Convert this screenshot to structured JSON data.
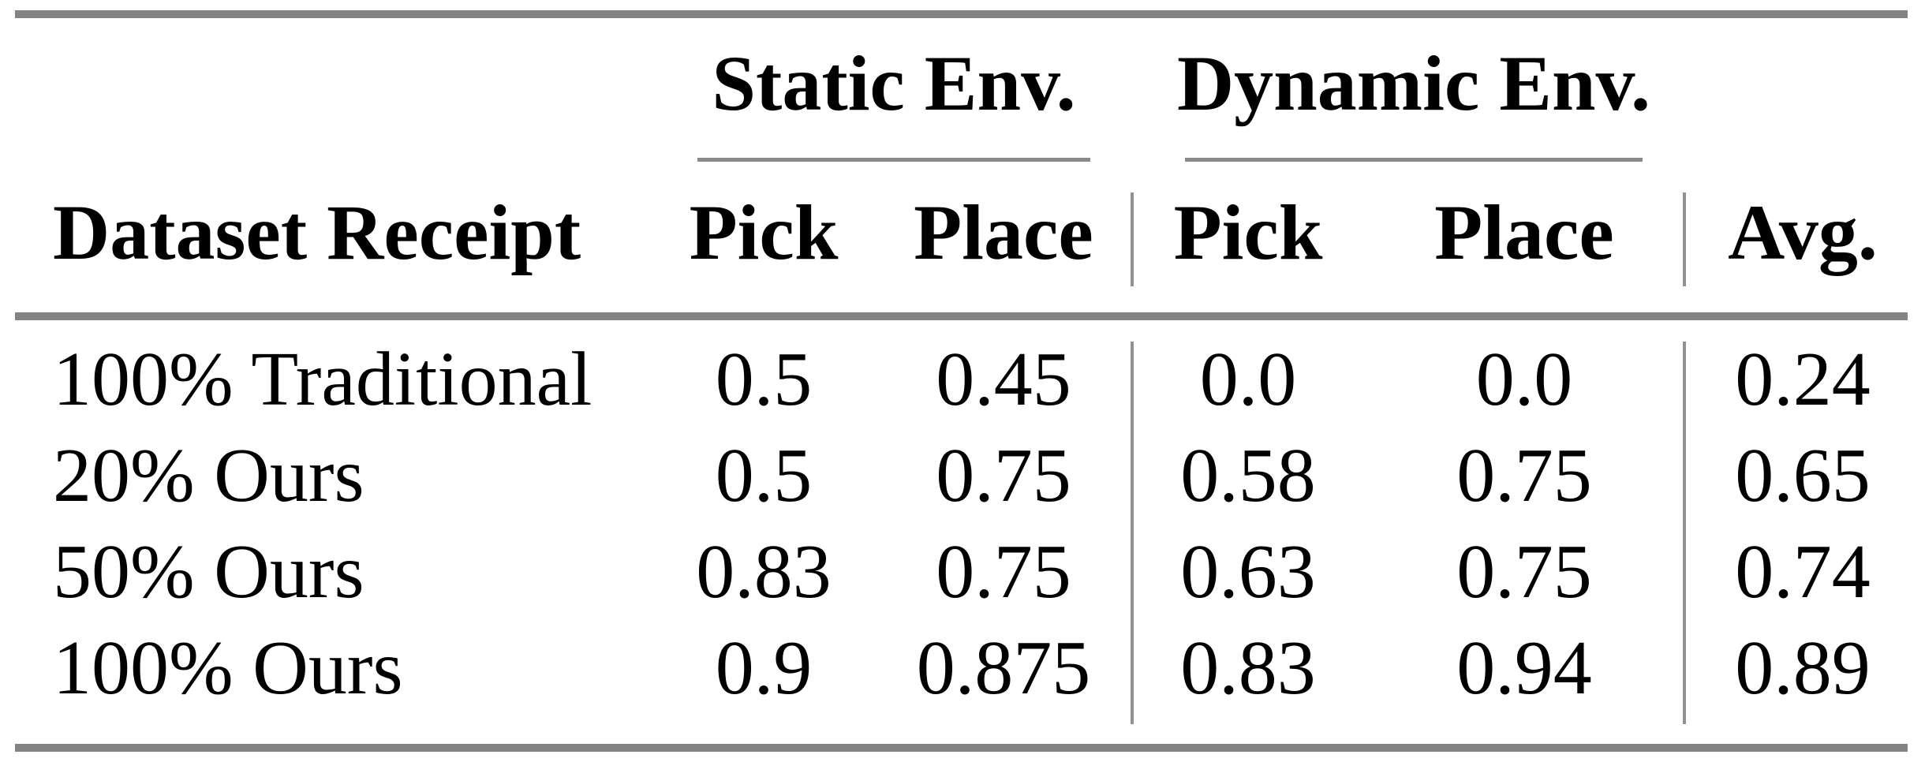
{
  "page": {
    "background": "#ffffff",
    "colors": {
      "rule_gray": "#838383",
      "vertical_rule_gray": "#919191",
      "text": "#000000"
    }
  },
  "table": {
    "group_headers": [
      {
        "id": "static",
        "label": "Static Env."
      },
      {
        "id": "dynamic",
        "label": "Dynamic Env."
      }
    ],
    "column_headers": {
      "row_label": "Dataset Receipt",
      "static": [
        "Pick",
        "Place"
      ],
      "dynamic": [
        "Pick",
        "Place"
      ],
      "avg": "Avg."
    },
    "rows": [
      {
        "label": "100% Traditional",
        "values": [
          "0.5",
          "0.45",
          "0.0",
          "0.0",
          "0.24"
        ]
      },
      {
        "label": "20% Ours",
        "values": [
          "0.5",
          "0.75",
          "0.58",
          "0.75",
          "0.65"
        ]
      },
      {
        "label": "50% Ours",
        "values": [
          "0.83",
          "0.75",
          "0.63",
          "0.75",
          "0.74"
        ]
      },
      {
        "label": "100% Ours",
        "values": [
          "0.9",
          "0.875",
          "0.83",
          "0.94",
          "0.89"
        ]
      }
    ]
  },
  "chart_data": {
    "type": "table",
    "title": "",
    "column_groups": [
      "",
      "Static Env.",
      "Static Env.",
      "Dynamic Env.",
      "Dynamic Env.",
      ""
    ],
    "columns": [
      "Dataset Receipt",
      "Pick (Static)",
      "Place (Static)",
      "Pick (Dynamic)",
      "Place (Dynamic)",
      "Avg."
    ],
    "rows": [
      [
        "100% Traditional",
        0.5,
        0.45,
        0.0,
        0.0,
        0.24
      ],
      [
        "20% Ours",
        0.5,
        0.75,
        0.58,
        0.75,
        0.65
      ],
      [
        "50% Ours",
        0.83,
        0.75,
        0.63,
        0.75,
        0.74
      ],
      [
        "100% Ours",
        0.9,
        0.875,
        0.83,
        0.94,
        0.89
      ]
    ]
  }
}
